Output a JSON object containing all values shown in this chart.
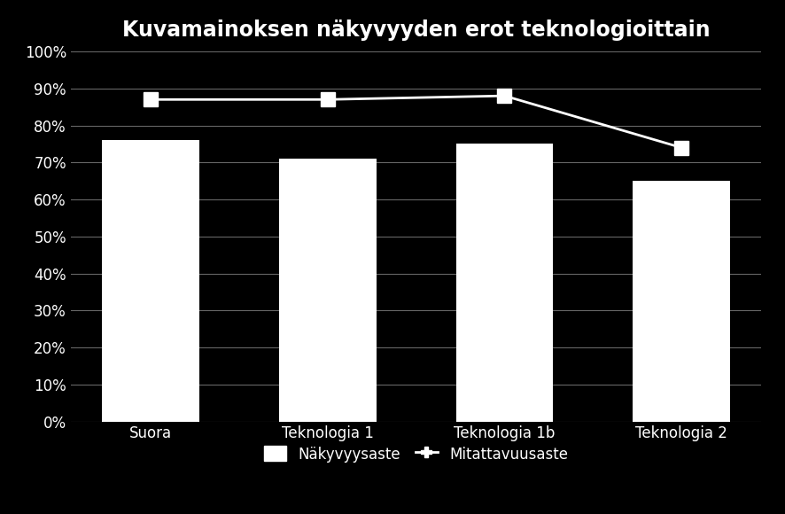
{
  "title": "Kuvamainoksen näkyvyyden erot teknologioittain",
  "categories": [
    "Suora",
    "Teknologia 1",
    "Teknologia 1b",
    "Teknologia 2"
  ],
  "bar_values": [
    0.76,
    0.71,
    0.75,
    0.65
  ],
  "line_values": [
    0.87,
    0.87,
    0.88,
    0.74
  ],
  "bar_color": "#ffffff",
  "line_color": "#ffffff",
  "background_color": "#000000",
  "plot_bg_color": "#000000",
  "grid_color": "#666666",
  "text_color": "#ffffff",
  "ylim": [
    0.0,
    1.0
  ],
  "yticks": [
    0.0,
    0.1,
    0.2,
    0.3,
    0.4,
    0.5,
    0.6,
    0.7,
    0.8,
    0.9,
    1.0
  ],
  "ytick_labels": [
    "0%",
    "10%",
    "20%",
    "30%",
    "40%",
    "50%",
    "60%",
    "70%",
    "80%",
    "90%",
    "100%"
  ],
  "legend_bar_label": "Näkyvyysaste",
  "legend_line_label": "Mitattavuusaste",
  "title_fontsize": 17,
  "tick_fontsize": 12,
  "legend_fontsize": 12,
  "bar_width": 0.55,
  "marker_size": 12,
  "line_width": 2.0
}
